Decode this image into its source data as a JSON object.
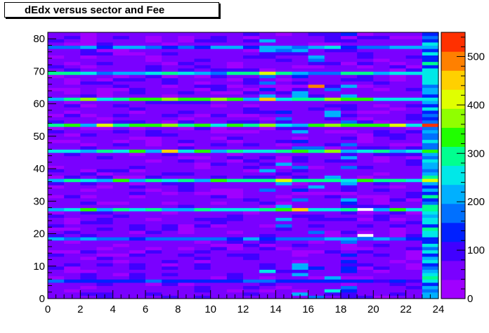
{
  "chart_data": {
    "type": "heatmap",
    "title": "dEdx versus sector and Fee",
    "xlabel": "",
    "ylabel": "",
    "xlim": [
      0,
      24
    ],
    "ylim": [
      0,
      82
    ],
    "x_bins": 24,
    "y_bins": 82,
    "x_ticks": [
      "0",
      "2",
      "4",
      "6",
      "8",
      "10",
      "12",
      "14",
      "16",
      "18",
      "20",
      "22",
      "24"
    ],
    "y_ticks": [
      "0",
      "10",
      "20",
      "30",
      "40",
      "50",
      "60",
      "70",
      "80"
    ],
    "colorbar": {
      "range": [
        0,
        550
      ],
      "ticks": [
        "0",
        "100",
        "200",
        "300",
        "400",
        "500"
      ],
      "palette": [
        "#a000ff",
        "#7a00ff",
        "#4000ff",
        "#0020ff",
        "#0070ff",
        "#00b0ff",
        "#00e8e8",
        "#00ff90",
        "#20ff00",
        "#90ff00",
        "#e0ff00",
        "#ffd000",
        "#ff8000",
        "#ff3000"
      ]
    },
    "typical_cell_value": 60,
    "bright_rows": [
      {
        "fee": 5,
        "level": 140
      },
      {
        "fee": 18,
        "level": 190
      },
      {
        "fee": 27,
        "level": 270
      },
      {
        "fee": 36,
        "level": 260
      },
      {
        "fee": 45,
        "level": 280
      },
      {
        "fee": 53,
        "level": 300
      },
      {
        "fee": 61,
        "level": 300
      },
      {
        "fee": 69,
        "level": 250
      },
      {
        "fee": 77,
        "level": 190
      }
    ],
    "hotspots": [
      {
        "sector": 7,
        "fee": 45,
        "value": 460
      },
      {
        "sector": 3,
        "fee": 53,
        "value": 430
      },
      {
        "sector": 13,
        "fee": 61,
        "value": 470
      },
      {
        "sector": 16,
        "fee": 65,
        "value": 480
      },
      {
        "sector": 13,
        "fee": 69,
        "value": 420
      },
      {
        "sector": 15,
        "fee": 27,
        "value": 440
      },
      {
        "sector": 14,
        "fee": 36,
        "value": 420
      },
      {
        "sector": 23,
        "fee": 53,
        "value": 530
      },
      {
        "sector": 21,
        "fee": 53,
        "value": 430
      },
      {
        "sector": 23,
        "fee": 36,
        "value": 410
      },
      {
        "sector": 17,
        "fee": 45,
        "value": 380
      }
    ],
    "empty_cells": [
      {
        "sector": 19,
        "fee": 27
      },
      {
        "sector": 19,
        "fee": 19
      }
    ],
    "bright_column": {
      "sector": 23,
      "level": 240
    }
  }
}
